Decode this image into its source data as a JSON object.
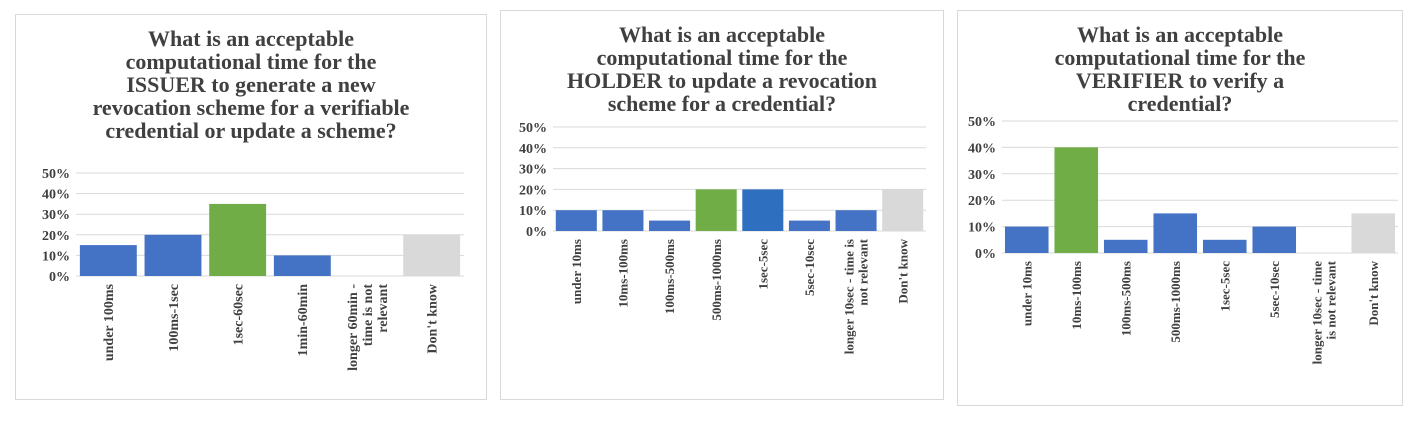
{
  "charts": [
    {
      "title_lines": [
        "What is an acceptable",
        "computational time for the",
        "ISSUER to generate a new",
        "revocation scheme for a verifiable",
        "credential or update a scheme?"
      ],
      "chart_data": {
        "type": "bar",
        "title": "What is an acceptable computational time for the ISSUER to generate a new revocation scheme for a verifiable credential or update a scheme?",
        "categories": [
          "under 100ms",
          "100ms-1sec",
          "1sec-60sec",
          "1min-60min",
          "longer 60min - time is not relevant",
          "Don't know"
        ],
        "category_lines": [
          [
            "under 100ms"
          ],
          [
            "100ms-1sec"
          ],
          [
            "1sec-60sec"
          ],
          [
            "1min-60min"
          ],
          [
            "longer 60min -",
            "time is not",
            "relevant"
          ],
          [
            "Don't know"
          ]
        ],
        "values": [
          15,
          20,
          35,
          10,
          0,
          20
        ],
        "bar_colors": [
          "#4472c4",
          "#4472c4",
          "#70ad47",
          "#4472c4",
          "#4472c4",
          "#d9d9d9"
        ],
        "ylim": [
          0,
          50
        ],
        "yticks": [
          "0%",
          "10%",
          "20%",
          "30%",
          "40%",
          "50%"
        ],
        "grid": true
      }
    },
    {
      "title_lines": [
        "What is an acceptable",
        "computational time  for the",
        "HOLDER to update a revocation",
        "scheme for a credential?"
      ],
      "chart_data": {
        "type": "bar",
        "title": "What is an acceptable computational time for the HOLDER to update a revocation scheme for a credential?",
        "categories": [
          "under 10ms",
          "10ms-100ms",
          "100ms-500ms",
          "500ms-1000ms",
          "1sec-5sec",
          "5sec-10sec",
          "longer 10sec - time is not relevant",
          "Don't know"
        ],
        "category_lines": [
          [
            "under 10ms"
          ],
          [
            "10ms-100ms"
          ],
          [
            "100ms-500ms"
          ],
          [
            "500ms-1000ms"
          ],
          [
            "1sec-5sec"
          ],
          [
            "5sec-10sec"
          ],
          [
            "longer 10sec - time is",
            "not relevant"
          ],
          [
            "Don't know"
          ]
        ],
        "values": [
          10,
          10,
          5,
          20,
          20,
          5,
          10,
          20
        ],
        "bar_colors": [
          "#4472c4",
          "#4472c4",
          "#4472c4",
          "#70ad47",
          "#2e6fbf",
          "#4472c4",
          "#4472c4",
          "#d9d9d9"
        ],
        "ylim": [
          0,
          50
        ],
        "yticks": [
          "0%",
          "10%",
          "20%",
          "30%",
          "40%",
          "50%"
        ],
        "grid": true
      }
    },
    {
      "title_lines": [
        "What is an acceptable",
        "computational time  for the",
        "VERIFIER to verify a",
        "credential?"
      ],
      "chart_data": {
        "type": "bar",
        "title": "What is an acceptable computational time for the VERIFIER to verify a credential?",
        "categories": [
          "under 10ms",
          "10ms-100ms",
          "100ms-500ms",
          "500ms-1000ms",
          "1sec-5sec",
          "5sec-10sec",
          "longer 10sec - time is not relevant",
          "Don't know"
        ],
        "category_lines": [
          [
            "under 10ms"
          ],
          [
            "10ms-100ms"
          ],
          [
            "100ms-500ms"
          ],
          [
            "500ms-1000ms"
          ],
          [
            "1sec-5sec"
          ],
          [
            "5sec-10sec"
          ],
          [
            "longer 10sec - time",
            "is not relevant"
          ],
          [
            "Don't know"
          ]
        ],
        "values": [
          10,
          40,
          5,
          15,
          5,
          10,
          0,
          15
        ],
        "bar_colors": [
          "#4472c4",
          "#70ad47",
          "#4472c4",
          "#4472c4",
          "#4472c4",
          "#4472c4",
          "#4472c4",
          "#d9d9d9"
        ],
        "ylim": [
          0,
          50
        ],
        "yticks": [
          "0%",
          "10%",
          "20%",
          "30%",
          "40%",
          "50%"
        ],
        "grid": true
      }
    }
  ]
}
